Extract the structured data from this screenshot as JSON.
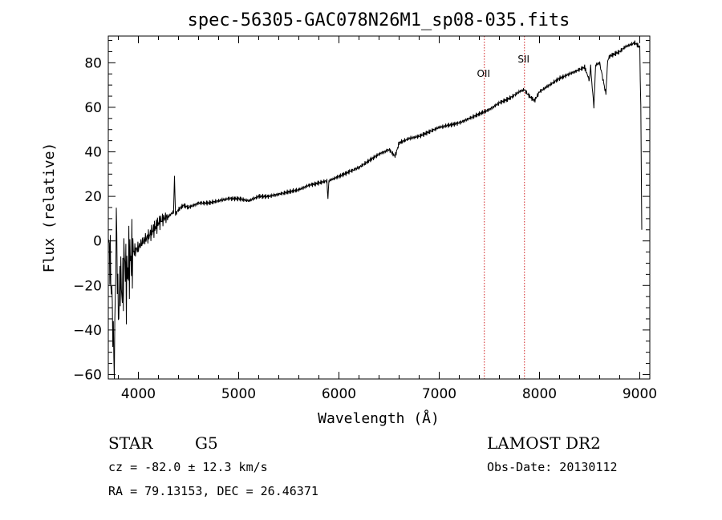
{
  "chart_data": {
    "type": "line",
    "title": "spec-56305-GAC078N26M1_sp08-035.fits",
    "xlabel": "Wavelength (Å)",
    "ylabel": "Flux (relative)",
    "xlim": [
      3700,
      9100
    ],
    "ylim": [
      -62,
      92
    ],
    "xticks": [
      4000,
      5000,
      6000,
      7000,
      8000,
      9000
    ],
    "yticks": [
      -60,
      -40,
      -20,
      0,
      20,
      40,
      60,
      80
    ],
    "grid": false,
    "lines": [
      {
        "label": "OII",
        "x": 7450,
        "color": "#d02020"
      },
      {
        "label": "SII",
        "x": 7850,
        "color": "#d02020"
      }
    ],
    "series": [
      {
        "x": [
          3700,
          3720,
          3740,
          3760,
          3780,
          3800,
          3820,
          3840,
          3860,
          3880,
          3900,
          3950,
          4000,
          4050,
          4100,
          4150,
          4200,
          4250,
          4300,
          4350,
          4360,
          4370,
          4400,
          4450,
          4500,
          4600,
          4700,
          4800,
          4900,
          5000,
          5100,
          5200,
          5300,
          5400,
          5500,
          5600,
          5700,
          5800,
          5880,
          5890,
          5900,
          6000,
          6100,
          6200,
          6300,
          6400,
          6500,
          6560,
          6600,
          6700,
          6800,
          6900,
          7000,
          7100,
          7200,
          7300,
          7400,
          7500,
          7600,
          7700,
          7800,
          7850,
          7880,
          7900,
          7950,
          8000,
          8100,
          8200,
          8300,
          8400,
          8450,
          8498,
          8510,
          8542,
          8560,
          8600,
          8662,
          8680,
          8700,
          8750,
          8800,
          8850,
          8900,
          8950,
          9000,
          9010,
          9020
        ],
        "y": [
          0,
          -10,
          -30,
          -60,
          10,
          -35,
          -15,
          -25,
          -5,
          -20,
          -10,
          -5,
          -3,
          0,
          2,
          5,
          8,
          10,
          11,
          13,
          29,
          12,
          14,
          16,
          15,
          17,
          17,
          18,
          19,
          19,
          18,
          20,
          20,
          21,
          22,
          23,
          25,
          26,
          27,
          19,
          27,
          29,
          31,
          33,
          36,
          39,
          41,
          38,
          44,
          46,
          47,
          49,
          51,
          52,
          53,
          55,
          57,
          59,
          62,
          64,
          67,
          68,
          66,
          65,
          63,
          67,
          70,
          73,
          75,
          77,
          78,
          72,
          78,
          60,
          79,
          80,
          66,
          81,
          83,
          84,
          85,
          87,
          88,
          89,
          87,
          60,
          5
        ]
      }
    ],
    "annotations": {
      "obj_class": "STAR",
      "subclass": "G5",
      "survey": "LAMOST DR2",
      "cz": "cz = -82.0 ± 12.3 km/s",
      "obs_date": "Obs-Date: 20130112",
      "radec": "RA =  79.13153, DEC =  26.46371"
    }
  }
}
